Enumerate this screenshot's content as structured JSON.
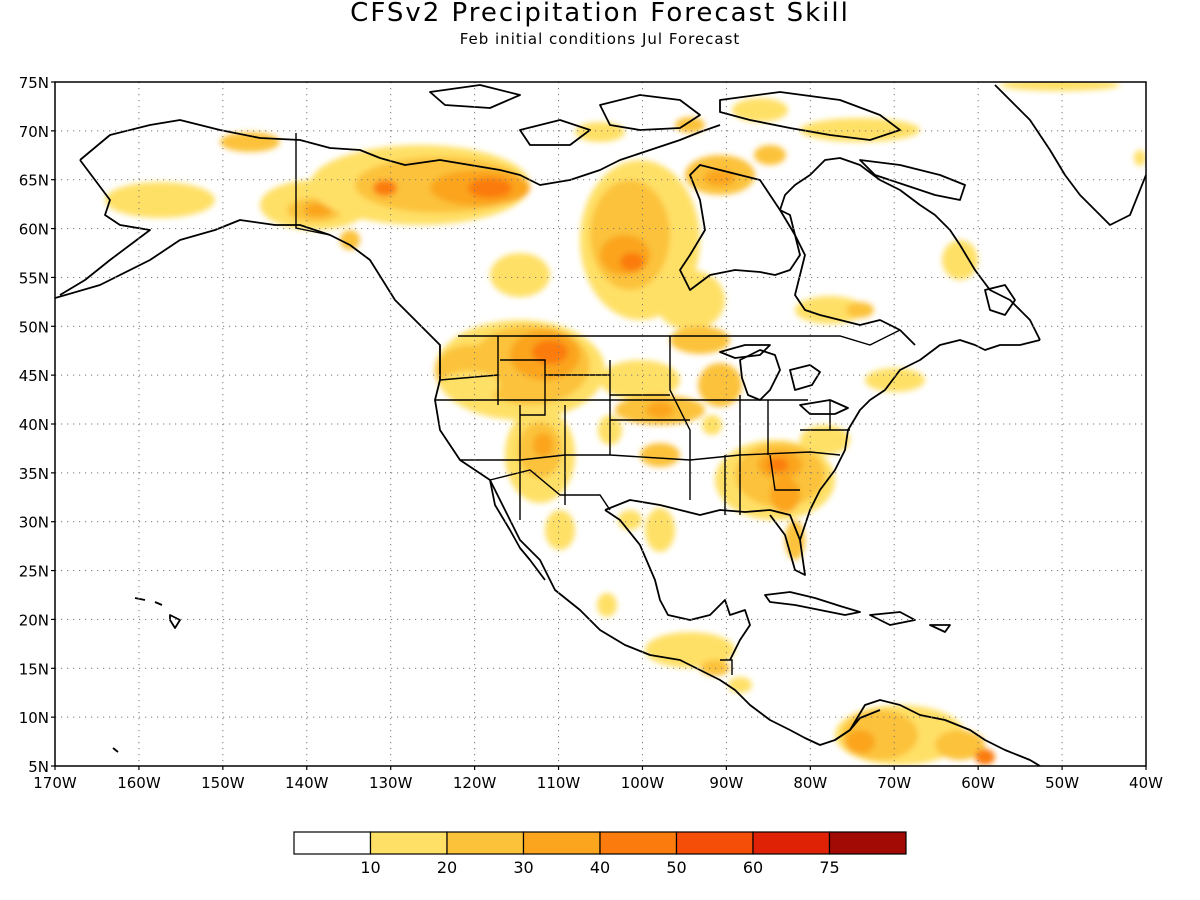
{
  "title": "CFSv2 Precipitation Forecast Skill",
  "subtitle": "Feb initial conditions  Jul Forecast",
  "lat_labels": [
    "75N",
    "70N",
    "65N",
    "60N",
    "55N",
    "50N",
    "45N",
    "40N",
    "35N",
    "30N",
    "25N",
    "20N",
    "15N",
    "10N",
    "5N"
  ],
  "lon_labels": [
    "170W",
    "160W",
    "150W",
    "140W",
    "130W",
    "120W",
    "110W",
    "100W",
    "90W",
    "80W",
    "70W",
    "60W",
    "50W",
    "40W"
  ],
  "colorbar": {
    "colors": [
      "#ffffff",
      "#ffe066",
      "#fcc23a",
      "#fba41d",
      "#fb7c0c",
      "#f44e08",
      "#df2206",
      "#a10a05"
    ],
    "labels": [
      "10",
      "20",
      "30",
      "40",
      "50",
      "60",
      "75"
    ]
  },
  "map_data": {
    "extent": {
      "lon_min": -170,
      "lon_max": -40,
      "lat_min": 5,
      "lat_max": 75
    },
    "variable": "precipitation forecast skill",
    "high_skill_regions": [
      {
        "lon": -120,
        "lat": 64,
        "level": 40
      },
      {
        "lon": -112,
        "lat": 46.5,
        "level": 50
      },
      {
        "lon": -103,
        "lat": 57,
        "level": 40
      },
      {
        "lon": -82,
        "lat": 33,
        "level": 40
      },
      {
        "lon": -86,
        "lat": 36,
        "level": 40
      },
      {
        "lon": -110,
        "lat": 36,
        "level": 30
      },
      {
        "lon": -138,
        "lat": 61,
        "level": 30
      },
      {
        "lon": -60,
        "lat": 6,
        "level": 50
      }
    ]
  }
}
